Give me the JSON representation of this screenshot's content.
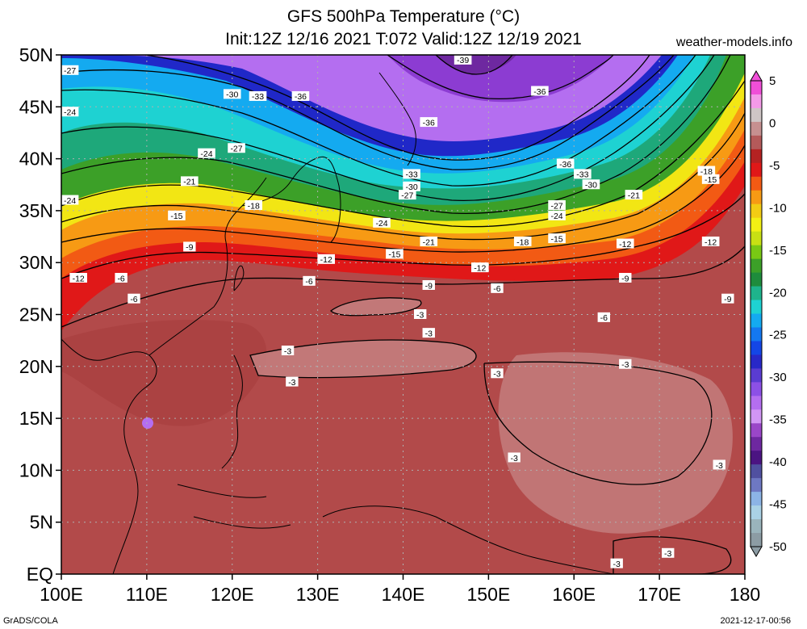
{
  "header": {
    "title_line1": "GFS 500hPa Temperature (°C)",
    "title_line2": "Init:12Z 12/16 2021 T:072 Valid:12Z 12/19 2021",
    "site": "weather-models.info"
  },
  "footer": {
    "left": "GrADS/COLA",
    "right": "2021-12-17-00:56"
  },
  "map": {
    "lon_range": [
      100,
      180
    ],
    "lat_range": [
      0,
      50
    ],
    "x_ticks": [
      "100E",
      "110E",
      "120E",
      "130E",
      "140E",
      "150E",
      "160E",
      "170E",
      "180"
    ],
    "y_ticks": [
      "EQ",
      "5N",
      "10N",
      "15N",
      "20N",
      "25N",
      "30N",
      "35N",
      "40N",
      "45N",
      "50N"
    ],
    "contour_labels": [
      {
        "text": "-27",
        "lon": 101,
        "lat": 48.5
      },
      {
        "text": "-30",
        "lon": 120,
        "lat": 46.2
      },
      {
        "text": "-33",
        "lon": 123,
        "lat": 46
      },
      {
        "text": "-36",
        "lon": 128,
        "lat": 46
      },
      {
        "text": "-39",
        "lon": 147,
        "lat": 49.5
      },
      {
        "text": "-36",
        "lon": 156,
        "lat": 46.5
      },
      {
        "text": "-36",
        "lon": 143,
        "lat": 43.5
      },
      {
        "text": "-36",
        "lon": 159,
        "lat": 39.5
      },
      {
        "text": "-33",
        "lon": 161,
        "lat": 38.5
      },
      {
        "text": "-30",
        "lon": 162,
        "lat": 37.5
      },
      {
        "text": "-33",
        "lon": 141,
        "lat": 38.5
      },
      {
        "text": "-30",
        "lon": 141,
        "lat": 37.3
      },
      {
        "text": "-27",
        "lon": 140.5,
        "lat": 36.5
      },
      {
        "text": "-24",
        "lon": 101,
        "lat": 44.5
      },
      {
        "text": "-24",
        "lon": 117,
        "lat": 40.5
      },
      {
        "text": "-27",
        "lon": 120.5,
        "lat": 41
      },
      {
        "text": "-21",
        "lon": 115,
        "lat": 37.8
      },
      {
        "text": "-18",
        "lon": 122.5,
        "lat": 35.5
      },
      {
        "text": "-24",
        "lon": 101,
        "lat": 36
      },
      {
        "text": "-15",
        "lon": 113.5,
        "lat": 34.5
      },
      {
        "text": "-9",
        "lon": 115,
        "lat": 31.5
      },
      {
        "text": "-12",
        "lon": 102,
        "lat": 28.5
      },
      {
        "text": "-6",
        "lon": 107,
        "lat": 28.5
      },
      {
        "text": "-6",
        "lon": 108.5,
        "lat": 26.5
      },
      {
        "text": "-12",
        "lon": 131,
        "lat": 30.3
      },
      {
        "text": "-15",
        "lon": 139,
        "lat": 30.8
      },
      {
        "text": "-21",
        "lon": 143,
        "lat": 32
      },
      {
        "text": "-24",
        "lon": 137.5,
        "lat": 33.8
      },
      {
        "text": "-18",
        "lon": 154,
        "lat": 32
      },
      {
        "text": "-15",
        "lon": 158,
        "lat": 32.3
      },
      {
        "text": "-12",
        "lon": 149,
        "lat": 29.5
      },
      {
        "text": "-6",
        "lon": 129,
        "lat": 28.2
      },
      {
        "text": "-9",
        "lon": 143,
        "lat": 27.8
      },
      {
        "text": "-6",
        "lon": 151,
        "lat": 27.5
      },
      {
        "text": "-27",
        "lon": 158,
        "lat": 35.5
      },
      {
        "text": "-24",
        "lon": 158,
        "lat": 34.5
      },
      {
        "text": "-21",
        "lon": 167,
        "lat": 36.5
      },
      {
        "text": "-18",
        "lon": 175.5,
        "lat": 38.8
      },
      {
        "text": "-15",
        "lon": 176,
        "lat": 38
      },
      {
        "text": "-12",
        "lon": 166,
        "lat": 31.8
      },
      {
        "text": "-12",
        "lon": 176,
        "lat": 32
      },
      {
        "text": "-9",
        "lon": 166,
        "lat": 28.5
      },
      {
        "text": "-9",
        "lon": 178,
        "lat": 26.5
      },
      {
        "text": "-6",
        "lon": 163.5,
        "lat": 24.7
      },
      {
        "text": "-3",
        "lon": 142,
        "lat": 25
      },
      {
        "text": "-3",
        "lon": 143,
        "lat": 23.2
      },
      {
        "text": "-3",
        "lon": 126.5,
        "lat": 21.5
      },
      {
        "text": "-3",
        "lon": 127,
        "lat": 18.5
      },
      {
        "text": "-3",
        "lon": 151,
        "lat": 19.3
      },
      {
        "text": "-3",
        "lon": 166,
        "lat": 20.2
      },
      {
        "text": "-3",
        "lon": 153,
        "lat": 11.2
      },
      {
        "text": "-3",
        "lon": 177,
        "lat": 10.5
      },
      {
        "text": "-3",
        "lon": 171,
        "lat": 2
      },
      {
        "text": "-3",
        "lon": 165,
        "lat": 1
      }
    ]
  },
  "colorbar": {
    "labels": [
      "5",
      "0",
      "-5",
      "-10",
      "-15",
      "-20",
      "-25",
      "-30",
      "-35",
      "-40",
      "-45",
      "-50"
    ],
    "colors": [
      "#f04fd8",
      "#f49ae8",
      "#cfc6c6",
      "#c69090",
      "#b45a5a",
      "#b42222",
      "#e01818",
      "#f25a14",
      "#f79a14",
      "#f2cc14",
      "#f2f014",
      "#c8e014",
      "#79c814",
      "#3ca028",
      "#1e8c3c",
      "#1eb48c",
      "#1ed2d2",
      "#14aaf0",
      "#1478f0",
      "#1446e6",
      "#2828c8",
      "#5a3cd2",
      "#8c50e6",
      "#b46ef0",
      "#d296f5",
      "#9a46c8",
      "#6e28a0",
      "#4b1482",
      "#5050a0",
      "#6e78c3",
      "#8cb4e6",
      "#aad2e6",
      "#9ab4bc",
      "#8c9ca4"
    ]
  }
}
